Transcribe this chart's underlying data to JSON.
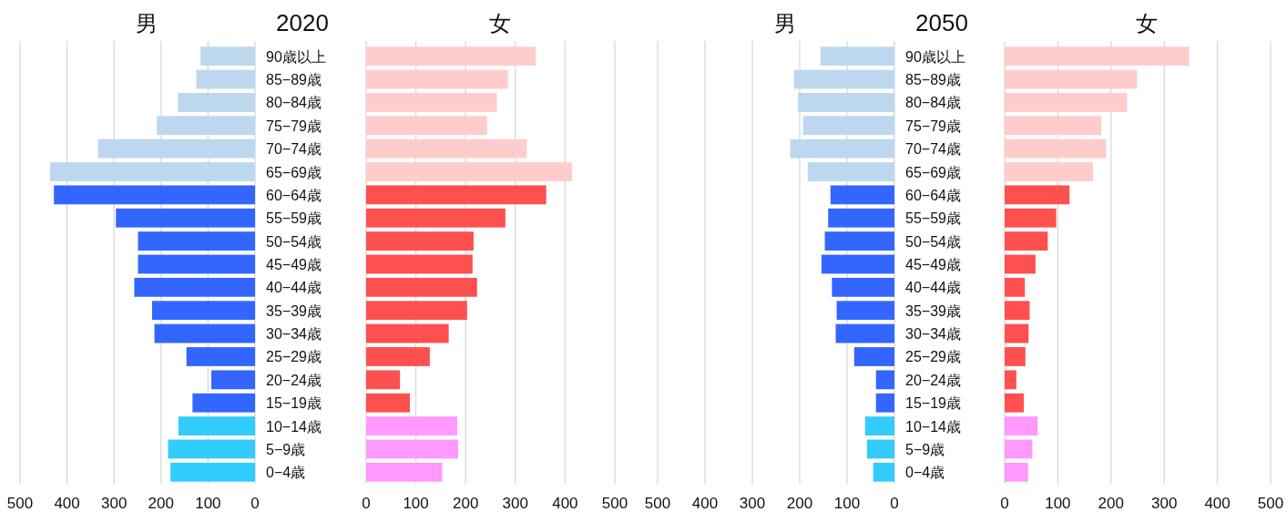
{
  "chart_data": [
    {
      "type": "bar",
      "orientation": "horizontal",
      "title": "男",
      "annotations": [
        "2020"
      ],
      "categories": [
        "90歳以上",
        "85−89歳",
        "80−84歳",
        "75−79歳",
        "70−74歳",
        "65−69歳",
        "60−64歳",
        "55−59歳",
        "50−54歳",
        "45−49歳",
        "40−44歳",
        "35−39歳",
        "30−34歳",
        "25−29歳",
        "20−24歳",
        "15−19歳",
        "10−14歳",
        "5−9歳",
        "0−4歳"
      ],
      "values": [
        116,
        125,
        164,
        209,
        334,
        436,
        428,
        296,
        249,
        249,
        257,
        219,
        214,
        146,
        93,
        133,
        163,
        185,
        180
      ],
      "colors": [
        "#bdd7ee",
        "#bdd7ee",
        "#bdd7ee",
        "#bdd7ee",
        "#bdd7ee",
        "#bdd7ee",
        "#3366ff",
        "#3366ff",
        "#3366ff",
        "#3366ff",
        "#3366ff",
        "#3366ff",
        "#3366ff",
        "#3366ff",
        "#3366ff",
        "#3366ff",
        "#33ccff",
        "#33ccff",
        "#33ccff"
      ],
      "xlim": [
        500,
        0
      ],
      "xticks": [
        500,
        400,
        300,
        200,
        100,
        0
      ],
      "grid": "x"
    },
    {
      "type": "bar",
      "orientation": "horizontal",
      "title": "女",
      "values": [
        341,
        285,
        263,
        243,
        323,
        414,
        362,
        280,
        216,
        214,
        223,
        203,
        166,
        128,
        68,
        88,
        183,
        185,
        153
      ],
      "colors": [
        "#ffcccc",
        "#ffcccc",
        "#ffcccc",
        "#ffcccc",
        "#ffcccc",
        "#ffcccc",
        "#ff5050",
        "#ff5050",
        "#ff5050",
        "#ff5050",
        "#ff5050",
        "#ff5050",
        "#ff5050",
        "#ff5050",
        "#ff5050",
        "#ff5050",
        "#ff99ff",
        "#ff99ff",
        "#ff99ff"
      ],
      "xlim": [
        0,
        500
      ],
      "xticks": [
        0,
        100,
        200,
        300,
        400,
        500
      ],
      "grid": "x",
      "tick_labels": "x"
    },
    {
      "type": "bar",
      "orientation": "horizontal",
      "title": "男",
      "annotations": [
        "2050"
      ],
      "categories": [
        "90歳以上",
        "85−89歳",
        "80−84歳",
        "75−79歳",
        "70−74歳",
        "65−69歳",
        "60−64歳",
        "55−59歳",
        "50−54歳",
        "45−49歳",
        "40−44歳",
        "35−39歳",
        "30−34歳",
        "25−29歳",
        "20−24歳",
        "15−19歳",
        "10−14歳",
        "5−9歳",
        "0−4歳"
      ],
      "values": [
        156,
        212,
        204,
        193,
        220,
        183,
        135,
        140,
        147,
        154,
        132,
        122,
        124,
        85,
        39,
        39,
        62,
        58,
        45
      ],
      "colors": [
        "#bdd7ee",
        "#bdd7ee",
        "#bdd7ee",
        "#bdd7ee",
        "#bdd7ee",
        "#bdd7ee",
        "#3366ff",
        "#3366ff",
        "#3366ff",
        "#3366ff",
        "#3366ff",
        "#3366ff",
        "#3366ff",
        "#3366ff",
        "#3366ff",
        "#3366ff",
        "#33ccff",
        "#33ccff",
        "#33ccff"
      ],
      "xlim": [
        500,
        0
      ],
      "xticks": [
        500,
        400,
        300,
        200,
        100,
        0
      ],
      "grid": "x"
    },
    {
      "type": "bar",
      "orientation": "horizontal",
      "title": "女",
      "values": [
        347,
        249,
        230,
        182,
        191,
        166,
        122,
        97,
        81,
        58,
        38,
        47,
        45,
        39,
        22,
        36,
        62,
        52,
        44
      ],
      "colors": [
        "#ffcccc",
        "#ffcccc",
        "#ffcccc",
        "#ffcccc",
        "#ffcccc",
        "#ffcccc",
        "#ff5050",
        "#ff5050",
        "#ff5050",
        "#ff5050",
        "#ff5050",
        "#ff5050",
        "#ff5050",
        "#ff5050",
        "#ff5050",
        "#ff5050",
        "#ff99ff",
        "#ff99ff",
        "#ff99ff"
      ],
      "xlim": [
        0,
        500
      ],
      "xticks": [
        0,
        100,
        200,
        300,
        400,
        500
      ],
      "grid": "x",
      "tick_labels": "x"
    }
  ]
}
